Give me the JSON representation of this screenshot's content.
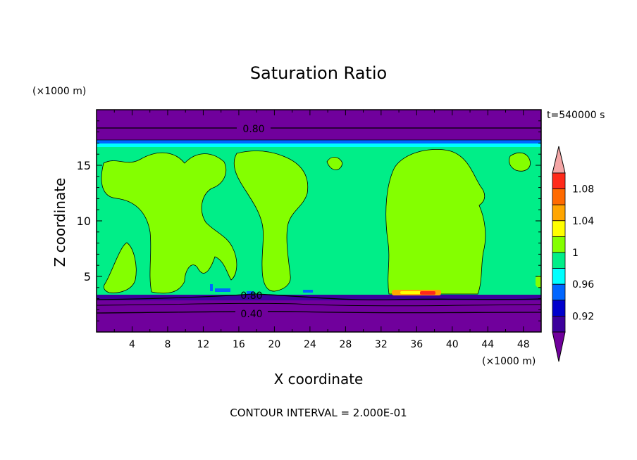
{
  "chart_data": {
    "type": "heatmap",
    "title": "Saturation Ratio",
    "xlabel": "X coordinate",
    "ylabel": "Z coordinate",
    "x_unit": "(×1000 m)",
    "z_unit": "(×1000 m)",
    "time_label": "t=540000 s",
    "footer": "CONTOUR INTERVAL = 2.000E-01",
    "xlim": [
      0,
      50
    ],
    "ylim": [
      0,
      20
    ],
    "x_ticks": [
      "4",
      "8",
      "12",
      "16",
      "20",
      "24",
      "28",
      "32",
      "36",
      "40",
      "44",
      "48"
    ],
    "y_ticks": [
      "5",
      "10",
      "15"
    ],
    "contour_labels": [
      "0.80",
      "0.80",
      "0.40"
    ],
    "colorbar": {
      "labels": [
        "1.08",
        "1.04",
        "1",
        "0.96",
        "0.92"
      ],
      "bins": [
        {
          "level": 1.1,
          "color": "#f4a6a6"
        },
        {
          "level": 1.08,
          "color": "#ff2a1a"
        },
        {
          "level": 1.06,
          "color": "#ff6a00"
        },
        {
          "level": 1.04,
          "color": "#ffa500"
        },
        {
          "level": 1.02,
          "color": "#ffff00"
        },
        {
          "level": 1.0,
          "color": "#84ff00"
        },
        {
          "level": 0.98,
          "color": "#00ee88"
        },
        {
          "level": 0.96,
          "color": "#00ffff"
        },
        {
          "level": 0.94,
          "color": "#0066ff"
        },
        {
          "level": 0.92,
          "color": "#0000cc"
        },
        {
          "level": 0.9,
          "color": "#3c009c"
        },
        {
          "level": 0.88,
          "color": "#70009c"
        }
      ]
    },
    "colors": {
      "dry": "#70009c",
      "near_saturated": "#00ee88",
      "super_saturated": "#84ff00",
      "ice": "#00ffff",
      "deep_blue": "#0066ff",
      "hot": "#ff2a1a",
      "warm": "#ffa500"
    }
  }
}
